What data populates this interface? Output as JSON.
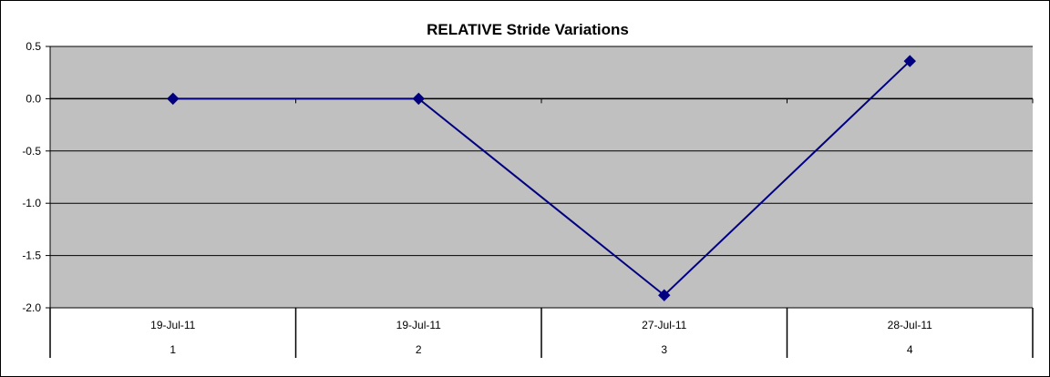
{
  "chart_data": {
    "type": "line",
    "title": "RELATIVE Stride Variations",
    "xlabel": "",
    "ylabel": "",
    "categories": [
      {
        "date": "19-Jul-11",
        "index": "1"
      },
      {
        "date": "19-Jul-11",
        "index": "2"
      },
      {
        "date": "27-Jul-11",
        "index": "3"
      },
      {
        "date": "28-Jul-11",
        "index": "4"
      }
    ],
    "series": [
      {
        "values": [
          0.0,
          0.0,
          -1.88,
          0.36
        ]
      }
    ],
    "ylim": [
      -2.0,
      0.5
    ],
    "yticks": [
      "0.5",
      "0.0",
      "-0.5",
      "-1.0",
      "-1.5",
      "-2.0"
    ],
    "ytick_values": [
      0.5,
      0.0,
      -0.5,
      -1.0,
      -1.5,
      -2.0
    ],
    "grid": true,
    "legend": "none",
    "colors": {
      "plot_background": "#c0c0c0",
      "line": "#000080",
      "marker": "#000080",
      "gridline": "#000000"
    }
  }
}
